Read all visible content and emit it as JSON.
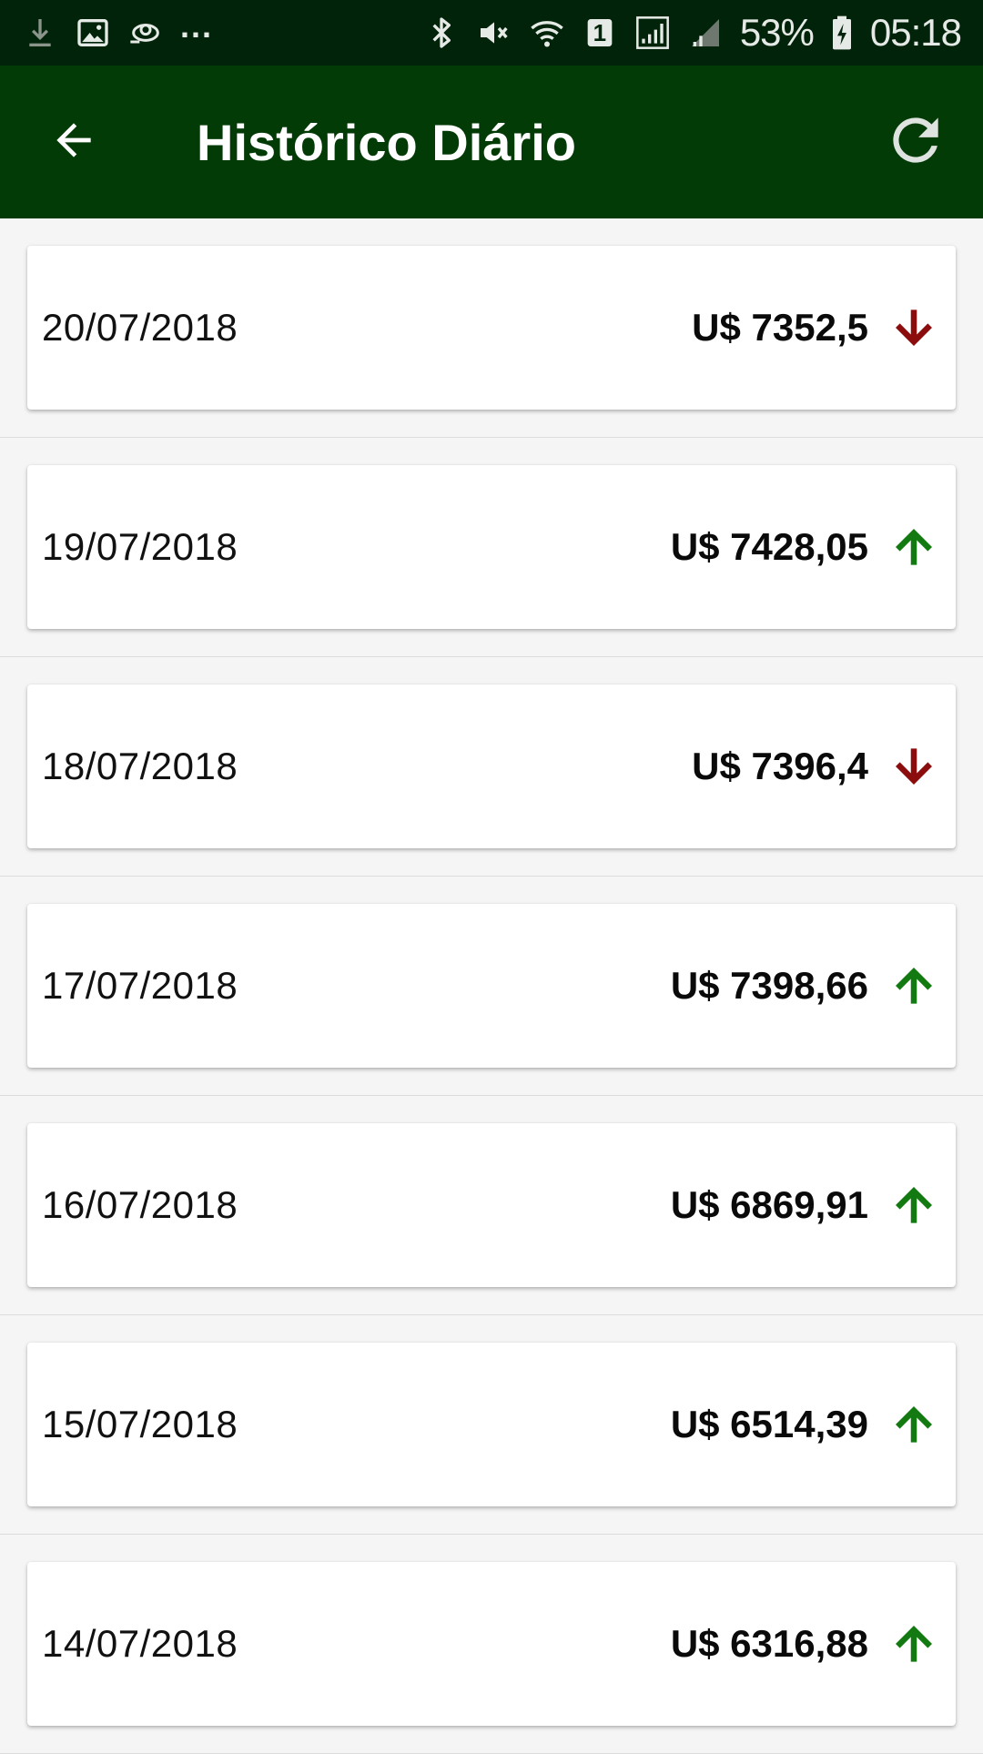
{
  "status_bar": {
    "battery": "53%",
    "time": "05:18",
    "sim_slot": "1",
    "overflow": "...",
    "icons_left": [
      "download-icon",
      "image-icon",
      "sync-icon"
    ],
    "icons_right": [
      "bluetooth-icon",
      "mute-icon",
      "wifi-icon",
      "sim-icon",
      "signal-icon",
      "signal-icon",
      "battery-icon"
    ]
  },
  "app_bar": {
    "title": "Histórico Diário",
    "back_icon": "arrow-back-icon",
    "refresh_icon": "refresh-icon"
  },
  "colors": {
    "status_bar_bg": "#01230a",
    "app_bar_bg": "#033b07",
    "trend_up": "#137a12",
    "trend_down": "#8b0d0d"
  },
  "history": [
    {
      "date": "20/07/2018",
      "price": "U$ 7352,5",
      "trend": "down"
    },
    {
      "date": "19/07/2018",
      "price": "U$ 7428,05",
      "trend": "up"
    },
    {
      "date": "18/07/2018",
      "price": "U$ 7396,4",
      "trend": "down"
    },
    {
      "date": "17/07/2018",
      "price": "U$ 7398,66",
      "trend": "up"
    },
    {
      "date": "16/07/2018",
      "price": "U$ 6869,91",
      "trend": "up"
    },
    {
      "date": "15/07/2018",
      "price": "U$ 6514,39",
      "trend": "up"
    },
    {
      "date": "14/07/2018",
      "price": "U$ 6316,88",
      "trend": "up"
    }
  ]
}
